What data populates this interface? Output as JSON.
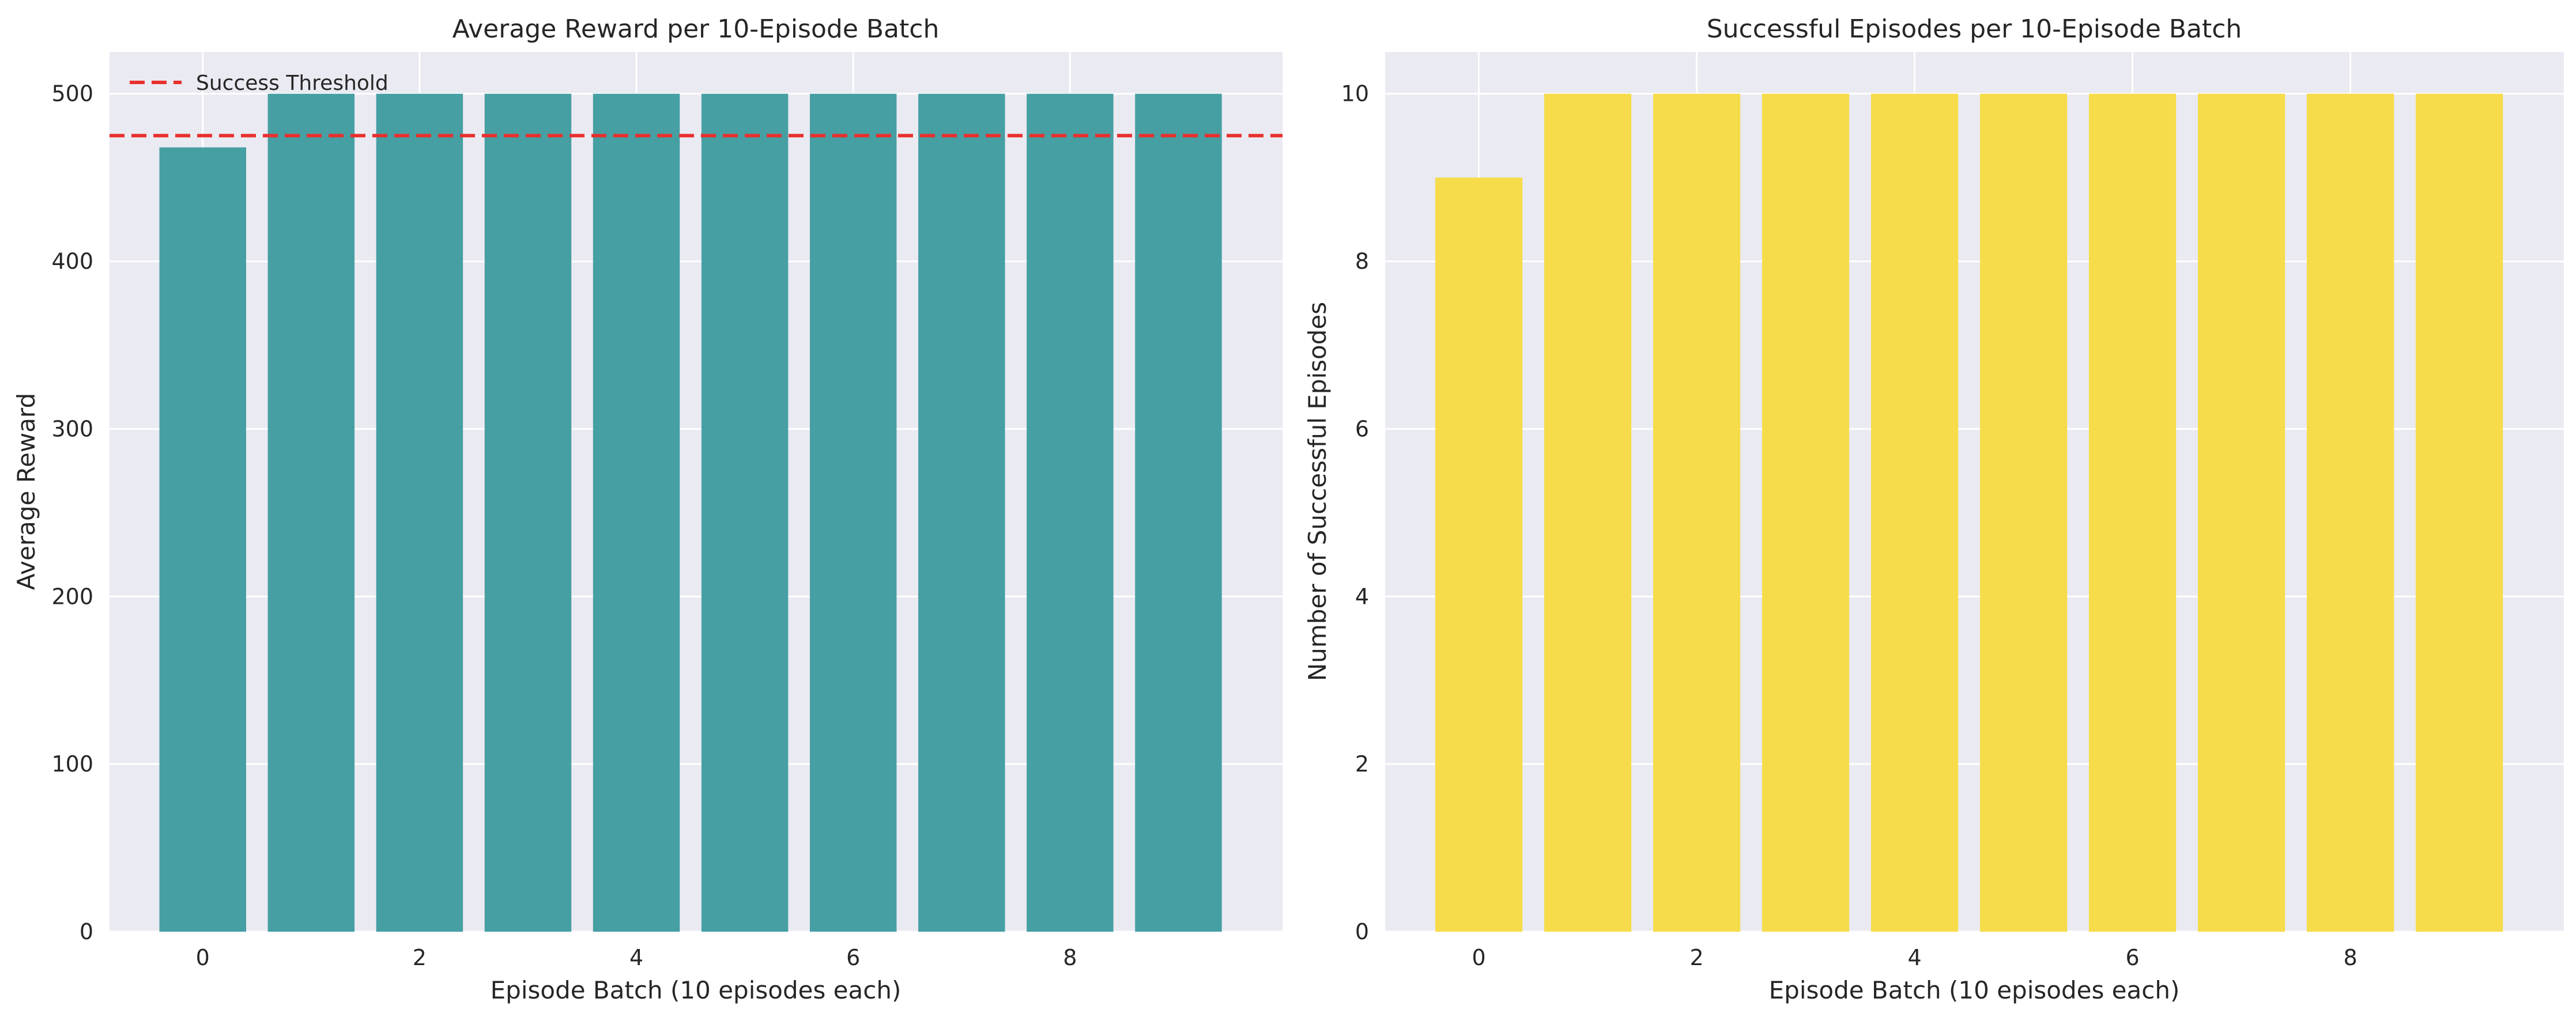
{
  "chart_data": [
    {
      "type": "bar",
      "title": "Average Reward per 10-Episode Batch",
      "xlabel": "Episode Batch (10 episodes each)",
      "ylabel": "Average Reward",
      "x": [
        0,
        1,
        2,
        3,
        4,
        5,
        6,
        7,
        8,
        9
      ],
      "values": [
        468,
        500,
        500,
        500,
        500,
        500,
        500,
        500,
        500,
        500
      ],
      "xticks": [
        "0",
        "2",
        "4",
        "6",
        "8"
      ],
      "yticks": [
        "0",
        "100",
        "200",
        "300",
        "400",
        "500"
      ],
      "ylim": [
        0,
        525
      ],
      "bar_color": "#469fa3",
      "reference_line": {
        "label": "Success Threshold",
        "value": 475,
        "color": "#e8302e",
        "style": "dashed"
      },
      "legend": {
        "position": "top-left",
        "entries": [
          "Success Threshold"
        ]
      },
      "grid": true
    },
    {
      "type": "bar",
      "title": "Successful Episodes per 10-Episode Batch",
      "xlabel": "Episode Batch (10 episodes each)",
      "ylabel": "Number of Successful Episodes",
      "x": [
        0,
        1,
        2,
        3,
        4,
        5,
        6,
        7,
        8,
        9
      ],
      "values": [
        9,
        10,
        10,
        10,
        10,
        10,
        10,
        10,
        10,
        10
      ],
      "xticks": [
        "0",
        "2",
        "4",
        "6",
        "8"
      ],
      "yticks": [
        "0",
        "2",
        "4",
        "6",
        "8",
        "10"
      ],
      "ylim": [
        0,
        10.5
      ],
      "bar_color": "#f6dc4a",
      "grid": true
    }
  ]
}
